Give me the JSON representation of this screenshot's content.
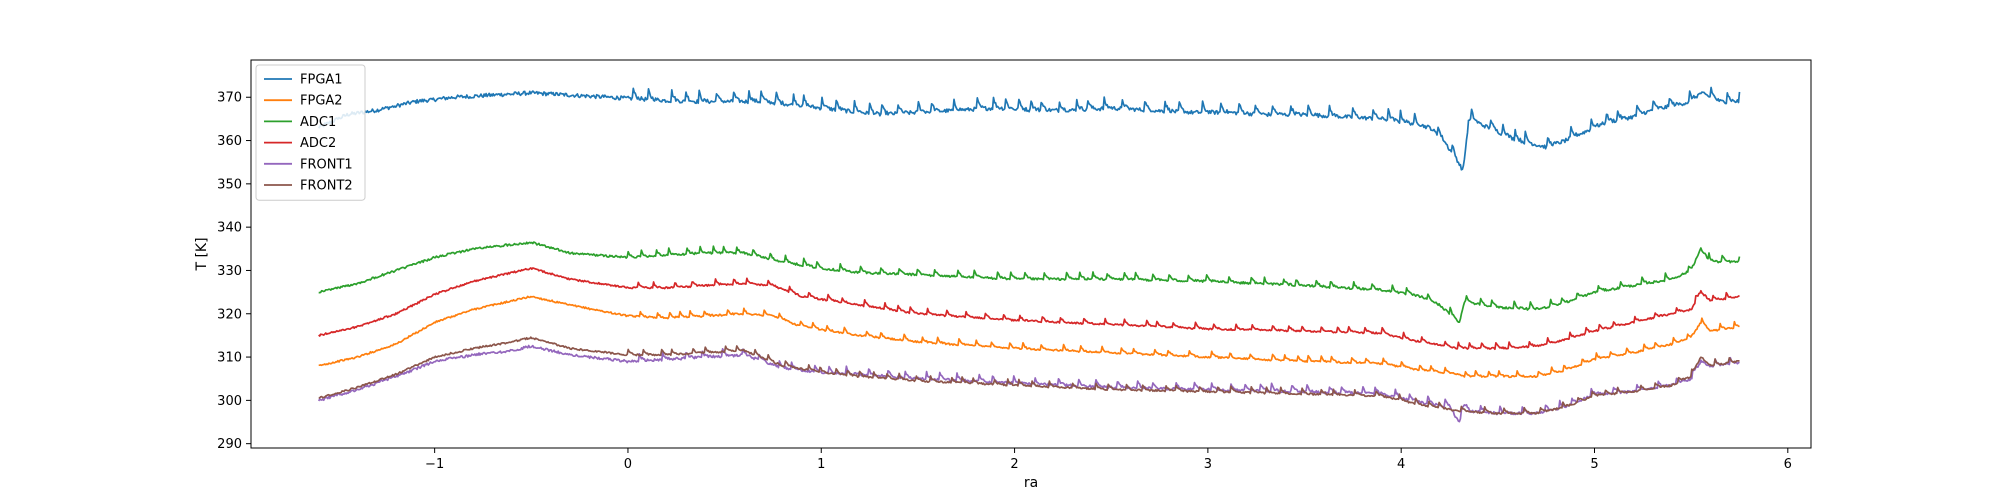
{
  "chart_data": {
    "type": "line",
    "title": "",
    "xlabel": "ra",
    "ylabel": "T [K]",
    "xlim": [
      -1.95,
      6.12
    ],
    "ylim": [
      289.0,
      378.6
    ],
    "xticks": [
      -1,
      0,
      1,
      2,
      3,
      4,
      5,
      6
    ],
    "yticks": [
      290,
      300,
      310,
      320,
      330,
      340,
      350,
      360,
      370
    ],
    "grid": false,
    "legend": {
      "position": "top-left"
    },
    "series": [
      {
        "name": "FPGA1",
        "color": "#1f77b4",
        "noise": 0.9,
        "sawtooth": 2.2,
        "x": [
          -1.6,
          -1.45,
          -1.3,
          -1.1,
          -0.9,
          -0.7,
          -0.5,
          -0.3,
          -0.1,
          0.1,
          0.3,
          0.5,
          0.7,
          0.9,
          1.1,
          1.3,
          1.5,
          1.7,
          1.9,
          2.1,
          2.3,
          2.5,
          2.7,
          2.9,
          3.1,
          3.3,
          3.5,
          3.7,
          3.9,
          4.05,
          4.15,
          4.22,
          4.28,
          4.32,
          4.35,
          4.5,
          4.6,
          4.75,
          4.85,
          4.95,
          5.05,
          5.2,
          5.3,
          5.4,
          5.5,
          5.55,
          5.6,
          5.65,
          5.75
        ],
        "y": [
          363,
          366,
          367,
          369,
          370,
          370.5,
          371,
          370.5,
          370,
          369.5,
          369,
          369,
          369,
          368,
          367,
          366,
          366.5,
          367,
          367.5,
          367,
          367,
          367.5,
          367,
          366.5,
          366.5,
          366,
          366,
          365.5,
          365,
          364,
          363,
          360,
          356,
          353,
          365,
          362,
          360,
          358.5,
          360,
          362,
          364,
          365.5,
          367,
          368,
          369,
          371,
          370,
          369,
          369
        ]
      },
      {
        "name": "FPGA2",
        "color": "#ff7f0e",
        "noise": 0.4,
        "sawtooth": 1.2,
        "x": [
          -1.6,
          -1.4,
          -1.2,
          -1.0,
          -0.8,
          -0.6,
          -0.5,
          -0.3,
          0.0,
          0.2,
          0.4,
          0.6,
          0.75,
          0.9,
          1.2,
          1.5,
          2.0,
          2.5,
          3.0,
          3.5,
          3.9,
          4.1,
          4.3,
          4.33,
          4.5,
          4.7,
          4.85,
          5.0,
          5.2,
          5.4,
          5.5,
          5.55,
          5.6,
          5.75
        ],
        "y": [
          308,
          310,
          313,
          318,
          321,
          323,
          324,
          322,
          319.5,
          319,
          319.5,
          320,
          319.5,
          317,
          315,
          313.5,
          312,
          311,
          310,
          309,
          308.5,
          307,
          306,
          305.5,
          305.5,
          305.5,
          307,
          309.5,
          311,
          313,
          314.5,
          318,
          316,
          317
        ]
      },
      {
        "name": "ADC1",
        "color": "#2ca02c",
        "noise": 0.5,
        "sawtooth": 1.4,
        "x": [
          -1.6,
          -1.4,
          -1.2,
          -1.0,
          -0.8,
          -0.6,
          -0.5,
          -0.3,
          0.0,
          0.2,
          0.4,
          0.6,
          0.8,
          1.0,
          1.2,
          1.5,
          2.0,
          2.5,
          3.0,
          3.5,
          3.9,
          4.1,
          4.2,
          4.3,
          4.33,
          4.36,
          4.5,
          4.7,
          4.85,
          5.0,
          5.2,
          5.4,
          5.5,
          5.55,
          5.6,
          5.75
        ],
        "y": [
          325,
          327,
          330,
          333,
          335,
          336,
          336.5,
          334,
          333,
          333.5,
          334,
          334,
          332,
          330.5,
          329.5,
          329,
          328,
          328,
          327.5,
          326.5,
          325.5,
          324,
          322,
          318,
          323,
          322.5,
          321.5,
          321,
          322.5,
          325,
          326.5,
          328,
          330,
          335,
          332,
          332
        ]
      },
      {
        "name": "ADC2",
        "color": "#d62728",
        "noise": 0.4,
        "sawtooth": 1.2,
        "x": [
          -1.6,
          -1.4,
          -1.2,
          -1.0,
          -0.8,
          -0.6,
          -0.5,
          -0.3,
          0.0,
          0.2,
          0.4,
          0.6,
          0.75,
          0.9,
          1.2,
          1.5,
          2.0,
          2.5,
          3.0,
          3.5,
          3.9,
          4.1,
          4.3,
          4.33,
          4.5,
          4.7,
          4.85,
          5.0,
          5.2,
          5.4,
          5.5,
          5.55,
          5.6,
          5.75
        ],
        "y": [
          315,
          317,
          320,
          324.5,
          327.5,
          329.5,
          330.5,
          328,
          326,
          326,
          326.5,
          327,
          326.5,
          324,
          322,
          320,
          318.5,
          317.5,
          316.5,
          316,
          315.5,
          313.5,
          312,
          312,
          312,
          312.5,
          314,
          316,
          318,
          320,
          321,
          325,
          323,
          324
        ]
      },
      {
        "name": "FRONT1",
        "color": "#9467bd",
        "noise": 0.6,
        "sawtooth": 1.5,
        "x": [
          -1.6,
          -1.4,
          -1.2,
          -1.0,
          -0.8,
          -0.6,
          -0.5,
          -0.3,
          0.0,
          0.2,
          0.4,
          0.6,
          0.8,
          1.0,
          1.2,
          1.5,
          2.0,
          2.5,
          3.0,
          3.5,
          3.9,
          4.1,
          4.25,
          4.3,
          4.33,
          4.36,
          4.5,
          4.7,
          4.85,
          5.0,
          5.2,
          5.4,
          5.5,
          5.55,
          5.6,
          5.75
        ],
        "y": [
          300,
          302.5,
          305.5,
          309,
          310.5,
          311.5,
          312.5,
          310.5,
          309,
          309.5,
          310,
          310.5,
          307.5,
          306.5,
          306,
          305,
          304,
          303,
          302.5,
          302,
          301.5,
          299.5,
          298.5,
          295,
          299,
          297.5,
          297,
          297,
          298.5,
          301.5,
          302,
          303.5,
          305,
          309,
          308,
          308.5
        ]
      },
      {
        "name": "FRONT2",
        "color": "#8c564b",
        "noise": 0.4,
        "sawtooth": 1.2,
        "x": [
          -1.6,
          -1.4,
          -1.2,
          -1.0,
          -0.8,
          -0.6,
          -0.5,
          -0.3,
          0.0,
          0.2,
          0.4,
          0.6,
          0.8,
          1.0,
          1.2,
          1.5,
          2.0,
          2.5,
          3.0,
          3.5,
          3.9,
          4.1,
          4.3,
          4.5,
          4.7,
          4.85,
          5.0,
          5.2,
          5.4,
          5.5,
          5.55,
          5.6,
          5.75
        ],
        "y": [
          300.5,
          303,
          306,
          310,
          312,
          313.5,
          314.5,
          312,
          310.5,
          310.5,
          311,
          311.5,
          308,
          306.5,
          305.5,
          304.5,
          303.5,
          302.5,
          302,
          301.5,
          301,
          299,
          297.5,
          297,
          297,
          298.5,
          301,
          302,
          303.5,
          305.5,
          310,
          308,
          309
        ]
      }
    ]
  }
}
